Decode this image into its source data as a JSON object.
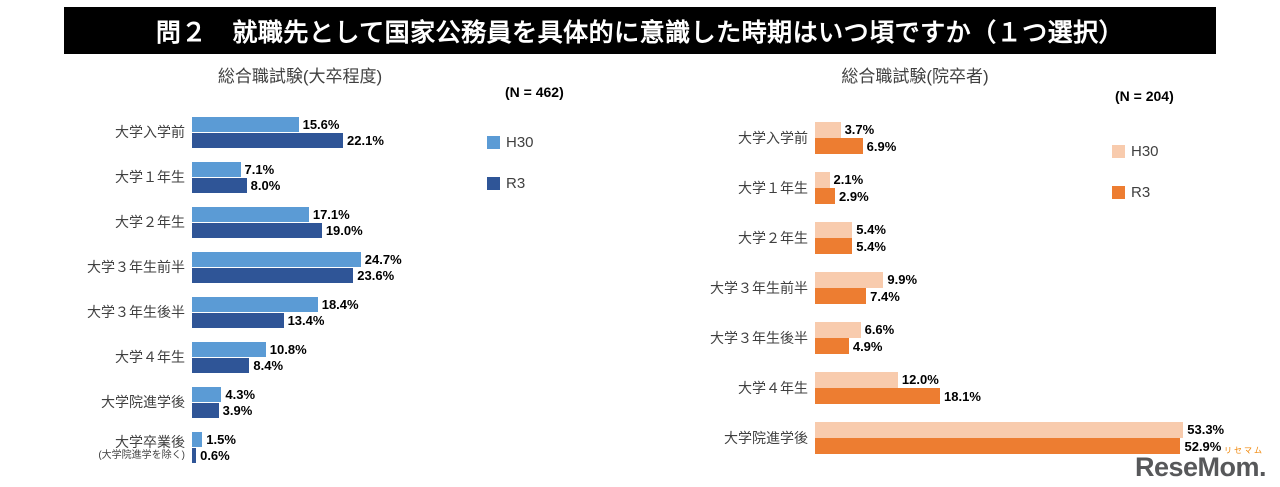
{
  "title": "問２　就職先として国家公務員を具体的に意識した時期はいつ頃ですか（１つ選択）",
  "logo": {
    "text": "ReseMom.",
    "furigana": "リセマム"
  },
  "chart_data": [
    {
      "type": "bar",
      "orientation": "horizontal",
      "title": "総合職試験(大卒程度)",
      "n_label": "(N = 462)",
      "legend_position": "right",
      "grid": false,
      "value_suffix": "%",
      "xlim": [
        0,
        30
      ],
      "categories": [
        "大学入学前",
        "大学１年生",
        "大学２年生",
        "大学３年生前半",
        "大学３年生後半",
        "大学４年生",
        "大学院進学後",
        {
          "label": "大学卒業後",
          "sublabel": "(大学院進学を除く)"
        }
      ],
      "series": [
        {
          "name": "H30",
          "color": "#5B9BD5",
          "values": [
            15.6,
            7.1,
            17.1,
            24.7,
            18.4,
            10.8,
            4.3,
            1.5
          ]
        },
        {
          "name": "R3",
          "color": "#2F5597",
          "values": [
            22.1,
            8.0,
            19.0,
            23.6,
            13.4,
            8.4,
            3.9,
            0.6
          ]
        }
      ]
    },
    {
      "type": "bar",
      "orientation": "horizontal",
      "title": "総合職試験(院卒者)",
      "n_label": "(N = 204)",
      "legend_position": "right",
      "grid": false,
      "value_suffix": "%",
      "xlim": [
        0,
        55
      ],
      "categories": [
        "大学入学前",
        "大学１年生",
        "大学２年生",
        "大学３年生前半",
        "大学３年生後半",
        "大学４年生",
        "大学院進学後"
      ],
      "series": [
        {
          "name": "H30",
          "color": "#F8CBAD",
          "values": [
            3.7,
            2.1,
            5.4,
            9.9,
            6.6,
            12.0,
            53.3
          ]
        },
        {
          "name": "R3",
          "color": "#ED7D31",
          "values": [
            6.9,
            2.9,
            5.4,
            7.4,
            4.9,
            18.1,
            52.9
          ]
        }
      ]
    }
  ]
}
